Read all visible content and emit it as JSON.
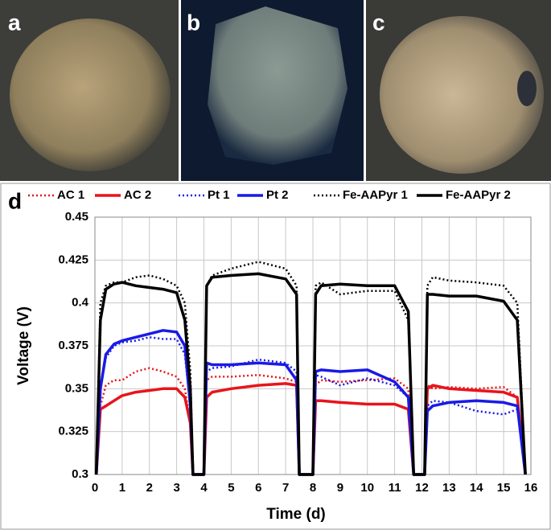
{
  "panels": [
    {
      "label": "a"
    },
    {
      "label": "b"
    },
    {
      "label": "c"
    }
  ],
  "chart_data": {
    "type": "line",
    "panel_label": "d",
    "xlabel": "Time (d)",
    "ylabel": "Voltage (V)",
    "x": [
      0.05,
      0.2,
      0.4,
      0.7,
      1,
      1.5,
      2,
      2.5,
      3,
      3.3,
      3.5,
      3.6,
      4.0,
      4.1,
      4.3,
      5,
      6,
      7,
      7.4,
      7.5,
      8.0,
      8.1,
      8.3,
      9,
      10,
      11,
      11.5,
      11.7,
      12.1,
      12.2,
      12.4,
      13,
      14,
      15,
      15.5,
      15.8
    ],
    "series": [
      {
        "name": "AC 1",
        "color": "#e8141b",
        "style": "dotted",
        "values": [
          0.3,
          0.34,
          0.352,
          0.355,
          0.355,
          0.36,
          0.362,
          0.36,
          0.357,
          0.35,
          0.33,
          0.3,
          0.3,
          0.355,
          0.357,
          0.357,
          0.358,
          0.356,
          0.354,
          0.3,
          0.3,
          0.352,
          0.355,
          0.354,
          0.355,
          0.356,
          0.35,
          0.3,
          0.3,
          0.352,
          0.35,
          0.351,
          0.35,
          0.351,
          0.345,
          0.3
        ]
      },
      {
        "name": "AC 2",
        "color": "#e8141b",
        "style": "solid",
        "values": [
          0.3,
          0.338,
          0.34,
          0.343,
          0.346,
          0.348,
          0.349,
          0.35,
          0.35,
          0.345,
          0.33,
          0.3,
          0.3,
          0.345,
          0.348,
          0.35,
          0.352,
          0.353,
          0.352,
          0.3,
          0.3,
          0.343,
          0.343,
          0.342,
          0.341,
          0.341,
          0.338,
          0.3,
          0.3,
          0.35,
          0.352,
          0.35,
          0.349,
          0.348,
          0.345,
          0.3
        ]
      },
      {
        "name": "Pt 1",
        "color": "#1a1ae6",
        "style": "dotted",
        "values": [
          0.3,
          0.35,
          0.368,
          0.375,
          0.377,
          0.378,
          0.38,
          0.379,
          0.379,
          0.37,
          0.34,
          0.3,
          0.3,
          0.36,
          0.362,
          0.363,
          0.367,
          0.365,
          0.36,
          0.3,
          0.3,
          0.358,
          0.357,
          0.352,
          0.356,
          0.352,
          0.345,
          0.3,
          0.3,
          0.34,
          0.343,
          0.342,
          0.337,
          0.335,
          0.338,
          0.3
        ]
      },
      {
        "name": "Pt 2",
        "color": "#1a1ae6",
        "style": "solid",
        "values": [
          0.3,
          0.35,
          0.37,
          0.376,
          0.378,
          0.38,
          0.382,
          0.384,
          0.383,
          0.375,
          0.34,
          0.3,
          0.3,
          0.365,
          0.364,
          0.364,
          0.365,
          0.364,
          0.355,
          0.3,
          0.3,
          0.36,
          0.361,
          0.36,
          0.361,
          0.354,
          0.345,
          0.3,
          0.3,
          0.337,
          0.34,
          0.342,
          0.343,
          0.342,
          0.34,
          0.3
        ]
      },
      {
        "name": "Fe-AAPyr 1",
        "color": "#000000",
        "style": "dotted",
        "values": [
          0.3,
          0.4,
          0.41,
          0.412,
          0.412,
          0.415,
          0.416,
          0.414,
          0.41,
          0.4,
          0.36,
          0.3,
          0.3,
          0.41,
          0.416,
          0.42,
          0.424,
          0.42,
          0.41,
          0.3,
          0.3,
          0.41,
          0.412,
          0.405,
          0.407,
          0.407,
          0.39,
          0.3,
          0.3,
          0.41,
          0.415,
          0.413,
          0.412,
          0.41,
          0.4,
          0.3
        ]
      },
      {
        "name": "Fe-AAPyr 2",
        "color": "#000000",
        "style": "solid",
        "values": [
          0.3,
          0.39,
          0.408,
          0.411,
          0.412,
          0.41,
          0.409,
          0.408,
          0.406,
          0.39,
          0.35,
          0.3,
          0.3,
          0.41,
          0.415,
          0.416,
          0.417,
          0.414,
          0.405,
          0.3,
          0.3,
          0.405,
          0.41,
          0.411,
          0.41,
          0.41,
          0.395,
          0.3,
          0.3,
          0.405,
          0.405,
          0.404,
          0.404,
          0.401,
          0.39,
          0.3
        ]
      }
    ],
    "xlim": [
      0,
      16
    ],
    "xticks": [
      0,
      1,
      2,
      3,
      4,
      5,
      6,
      7,
      8,
      9,
      10,
      11,
      12,
      13,
      14,
      15,
      16
    ],
    "ylim": [
      0.3,
      0.45
    ],
    "yticks": [
      0.3,
      0.325,
      0.35,
      0.375,
      0.4,
      0.425,
      0.45
    ],
    "grid": true
  }
}
